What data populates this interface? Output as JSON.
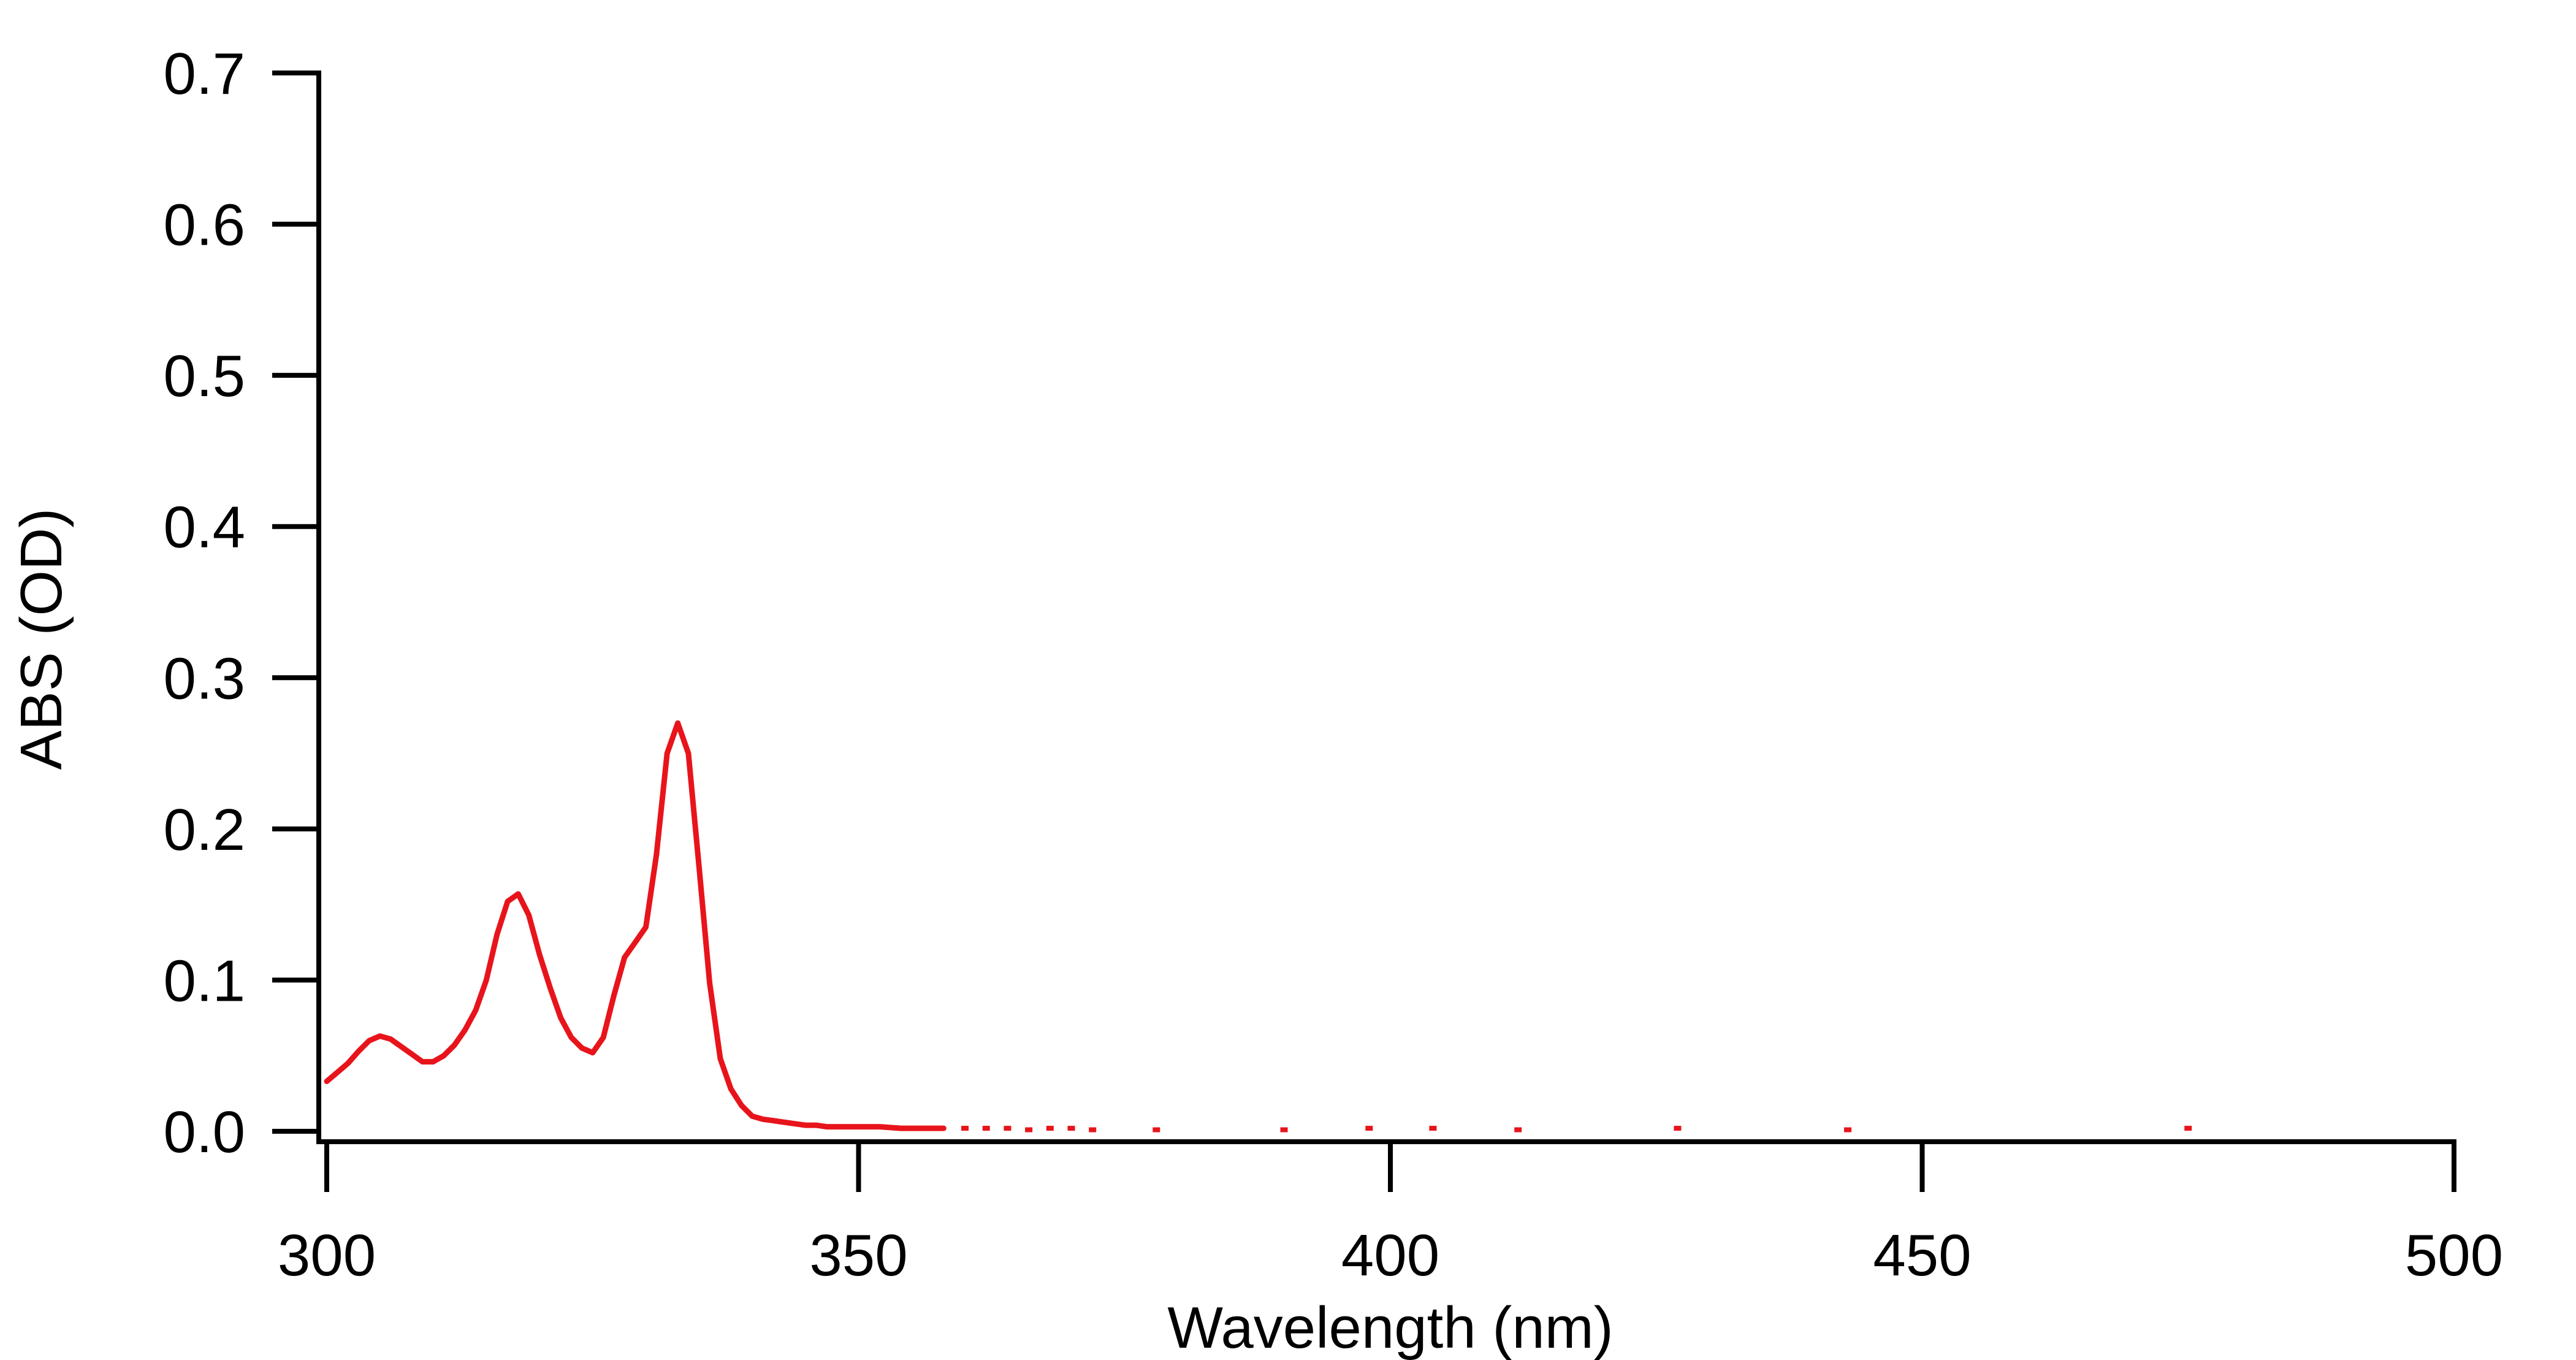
{
  "chart_data": {
    "type": "line",
    "title": "",
    "xlabel": "Wavelength (nm)",
    "ylabel": "ABS (OD)",
    "xlim": [
      300,
      500
    ],
    "ylim": [
      0,
      0.7
    ],
    "x_ticks": [
      "300",
      "350",
      "400",
      "450",
      "500"
    ],
    "y_ticks": [
      "0.0",
      "0.1",
      "0.2",
      "0.3",
      "0.4",
      "0.5",
      "0.6",
      "0.7"
    ],
    "grid": false,
    "legend": "none",
    "line_color": "#e8141b",
    "series": [
      {
        "x": [
          300,
          301,
          302,
          303,
          304,
          305,
          306,
          307,
          308,
          309,
          310,
          311,
          312,
          313,
          314,
          315,
          316,
          317,
          318,
          319,
          320,
          321,
          322,
          323,
          324,
          325,
          326,
          327,
          328,
          329,
          330,
          331,
          332,
          333,
          334,
          335,
          336,
          337,
          338,
          339,
          340,
          341,
          342,
          343,
          344,
          345,
          346,
          347,
          348,
          349,
          350,
          352,
          354,
          356,
          358
        ],
        "y": [
          0.033,
          0.039,
          0.045,
          0.053,
          0.06,
          0.063,
          0.061,
          0.056,
          0.051,
          0.046,
          0.046,
          0.05,
          0.057,
          0.067,
          0.08,
          0.1,
          0.13,
          0.152,
          0.157,
          0.143,
          0.117,
          0.095,
          0.075,
          0.062,
          0.055,
          0.052,
          0.062,
          0.09,
          0.115,
          0.125,
          0.135,
          0.183,
          0.25,
          0.27,
          0.25,
          0.175,
          0.098,
          0.048,
          0.028,
          0.017,
          0.01,
          0.008,
          0.007,
          0.006,
          0.005,
          0.004,
          0.004,
          0.003,
          0.003,
          0.003,
          0.003,
          0.003,
          0.002,
          0.002,
          0.002
        ]
      }
    ],
    "sparse_points": {
      "x": [
        360,
        362,
        364,
        366,
        368,
        370,
        372,
        378,
        390,
        398,
        404,
        412,
        427,
        443,
        475
      ],
      "y": [
        0.002,
        0.002,
        0.002,
        0.001,
        0.002,
        0.002,
        0.001,
        0.001,
        0.001,
        0.002,
        0.002,
        0.001,
        0.002,
        0.001,
        0.002
      ]
    }
  }
}
